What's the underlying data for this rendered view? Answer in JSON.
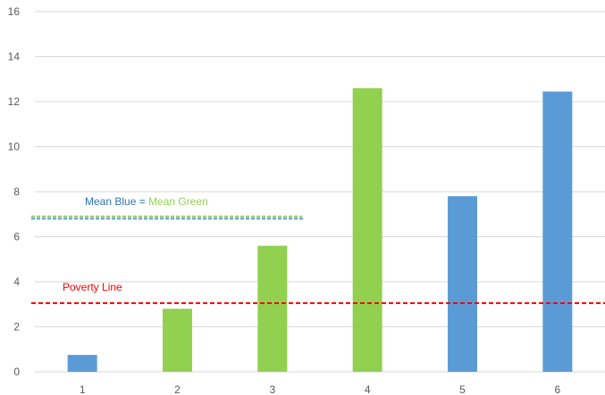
{
  "chart_data": {
    "type": "bar",
    "categories": [
      "1",
      "2",
      "3",
      "4",
      "5",
      "6"
    ],
    "values": [
      0.75,
      2.8,
      5.6,
      12.6,
      7.8,
      12.45
    ],
    "bar_colors": [
      "#5B9BD5",
      "#92D050",
      "#92D050",
      "#92D050",
      "#5B9BD5",
      "#5B9BD5"
    ],
    "ylim": [
      0,
      16
    ],
    "yticks": [
      "0",
      "2",
      "4",
      "6",
      "8",
      "10",
      "12",
      "14",
      "16"
    ],
    "grid": true,
    "colors": {
      "blue": "#5B9BD5",
      "green": "#92D050",
      "red": "#FF0000",
      "axis_text": "#595959",
      "grid": "#D9D9D9"
    },
    "annotations": {
      "mean_line": {
        "value": 6.9,
        "label_blue": "Mean Blue",
        "equals": " = ",
        "label_green": "Mean Green"
      },
      "poverty_line": {
        "value": 3.05,
        "label": "Poverty Line"
      }
    }
  }
}
